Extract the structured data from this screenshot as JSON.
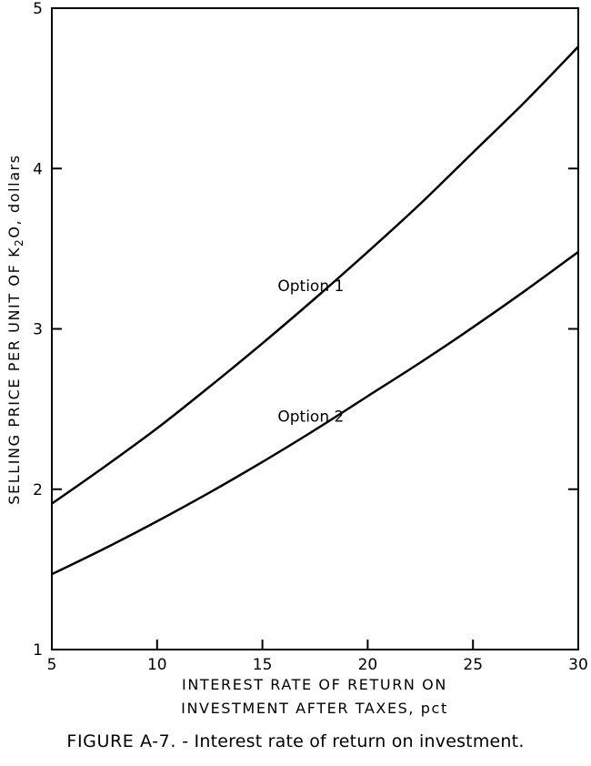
{
  "chart_data": {
    "type": "line",
    "xlabel_lines": [
      "INTEREST RATE OF RETURN ON",
      "INVESTMENT AFTER TAXES, pct"
    ],
    "ylabel": "SELLING PRICE PER UNIT OF K2O, dollars",
    "ylabel_parts": {
      "pre": "SELLING PRICE PER UNIT OF K",
      "sub": "2",
      "post": "O, dollars"
    },
    "xlim": [
      5,
      30
    ],
    "ylim": [
      1,
      5
    ],
    "xticks": [
      5,
      10,
      15,
      20,
      25,
      30
    ],
    "yticks": [
      1,
      2,
      3,
      4,
      5
    ],
    "grid": false,
    "series": [
      {
        "name": "Option 1",
        "x": [
          5,
          7.5,
          10,
          12.5,
          15,
          17.5,
          20,
          22.5,
          25,
          27.5,
          30
        ],
        "y": [
          1.91,
          2.14,
          2.38,
          2.64,
          2.91,
          3.19,
          3.48,
          3.78,
          4.1,
          4.42,
          4.76
        ]
      },
      {
        "name": "Option 2",
        "x": [
          5,
          7.5,
          10,
          12.5,
          15,
          17.5,
          20,
          22.5,
          25,
          27.5,
          30
        ],
        "y": [
          1.47,
          1.63,
          1.8,
          1.98,
          2.17,
          2.37,
          2.58,
          2.79,
          3.01,
          3.24,
          3.48
        ]
      }
    ]
  },
  "caption": {
    "figure_number": "FIGURE A-7.",
    "separator": " - ",
    "text": "Interest rate of return on investment."
  }
}
